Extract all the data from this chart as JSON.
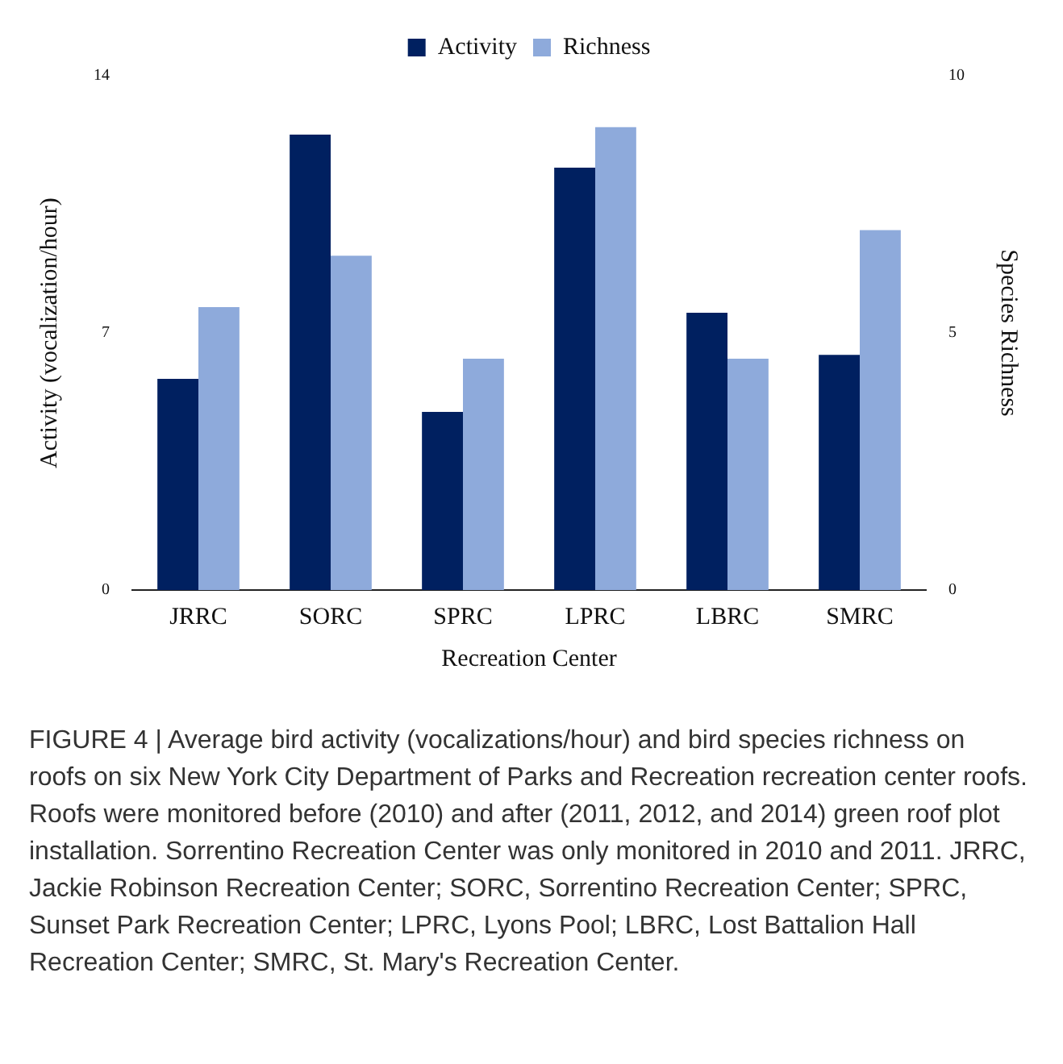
{
  "chart_data": {
    "type": "bar",
    "categories": [
      "JRRC",
      "SORC",
      "SPRC",
      "LPRC",
      "LBRC",
      "SMRC"
    ],
    "series": [
      {
        "name": "Activity",
        "color": "#002060",
        "values": [
          5.75,
          12.4,
          4.85,
          11.5,
          7.55,
          6.4
        ]
      },
      {
        "name": "Richness",
        "color": "#8eaadb",
        "axis": "y2",
        "values": [
          5.5,
          6.5,
          4.5,
          9,
          4.5,
          7
        ]
      }
    ],
    "xlabel": "Recreation Center",
    "ylabel": "Activity (vocalization/hour)",
    "y2label": "Species Richness",
    "ylim": [
      0,
      14
    ],
    "yticks": [
      0,
      7,
      14
    ],
    "y2lim": [
      0,
      10
    ],
    "y2ticks": [
      0,
      5,
      10
    ],
    "grid": false,
    "legend": "top",
    "annotations": [
      "FIGURE 4 | Average bird activity (vocalizations/hour) and bird species richness on roofs on six New York City Department of Parks and Recreation recreation center roofs. Roofs were monitored before (2010) and after (2011, 2012, and 2014) green roof plot installation. Sorrentino Recreation Center was only monitored in 2010 and 2011. JRRC, Jackie Robinson Recreation Center; SORC, Sorrentino Recreation Center; SPRC, Sunset Park Recreation Center; LPRC, Lyons Pool; LBRC, Lost Battalion Hall Recreation Center; SMRC, St. Mary's Recreation Center."
    ]
  }
}
